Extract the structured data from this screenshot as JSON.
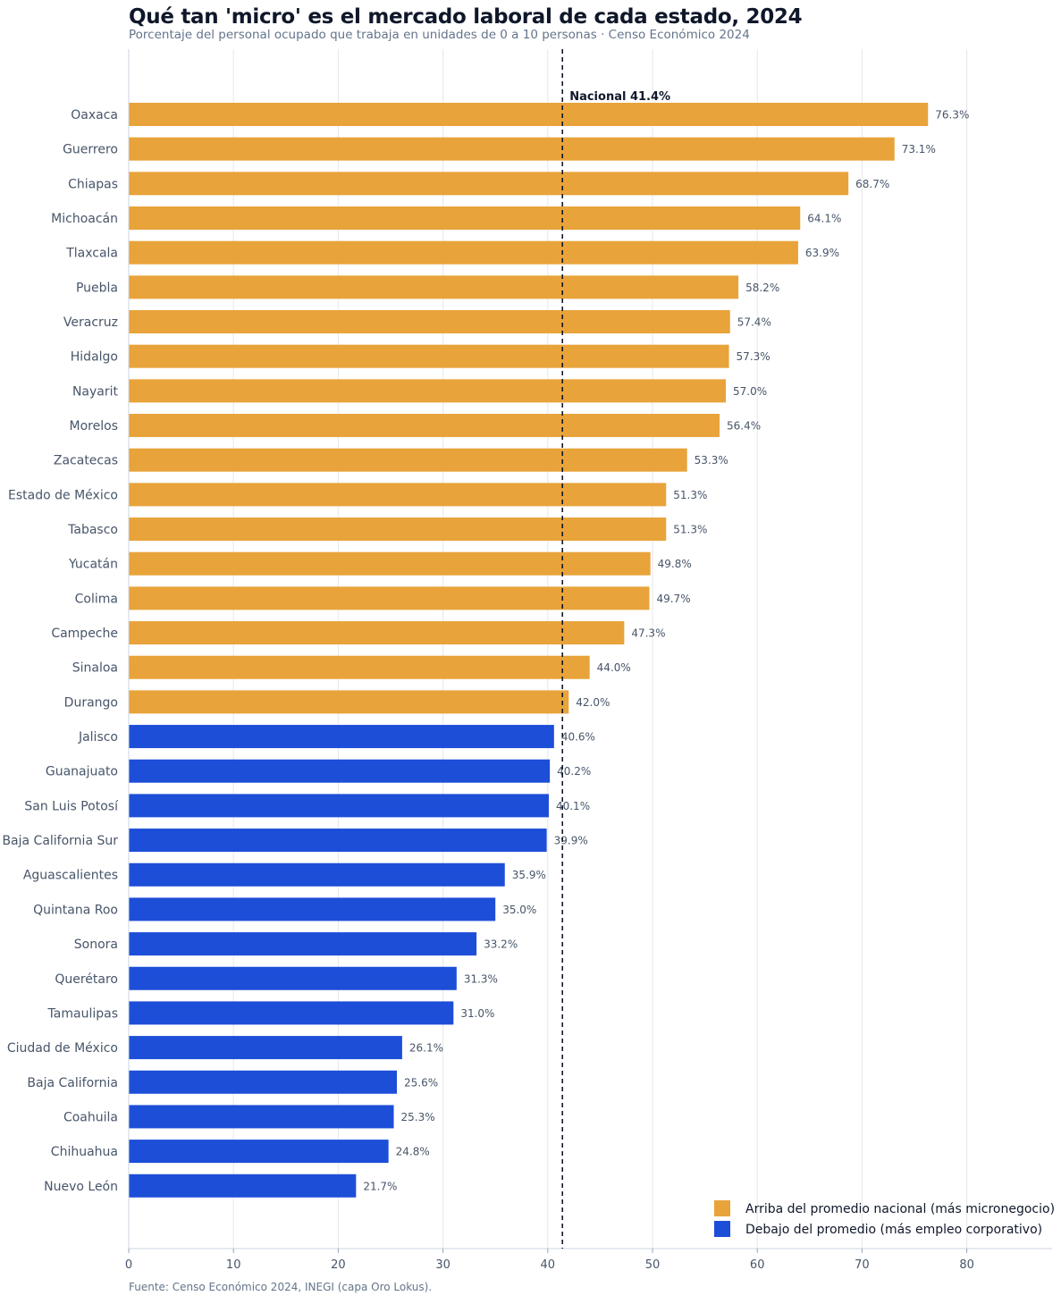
{
  "chart_data": {
    "type": "bar",
    "orientation": "horizontal",
    "title": "Qué tan 'micro' es el mercado laboral de cada estado, 2024",
    "subtitle": "Porcentaje del personal ocupado que trabaja en unidades de 0 a 10 personas · Censo Económico 2024",
    "source": "Fuente: Censo Económico 2024, INEGI (capa Oro Lokus).",
    "xlim": [
      0,
      88
    ],
    "x_ticks": [
      0,
      10,
      20,
      30,
      40,
      50,
      60,
      70,
      80
    ],
    "grid": "vertical",
    "legend_position": "bottom-right",
    "reference_line": {
      "value": 41.4,
      "label": "Nacional 41.4%"
    },
    "colors": {
      "above": "#E8A33A",
      "below": "#1D4ED8"
    },
    "legend": [
      {
        "group": "above",
        "label": "Arriba del promedio nacional (más micronegocio)"
      },
      {
        "group": "below",
        "label": "Debajo del promedio (más empleo corporativo)"
      }
    ],
    "categories": [
      "Oaxaca",
      "Guerrero",
      "Chiapas",
      "Michoacán",
      "Tlaxcala",
      "Puebla",
      "Veracruz",
      "Hidalgo",
      "Nayarit",
      "Morelos",
      "Zacatecas",
      "Estado de México",
      "Tabasco",
      "Yucatán",
      "Colima",
      "Campeche",
      "Sinaloa",
      "Durango",
      "Jalisco",
      "Guanajuato",
      "San Luis Potosí",
      "Baja California Sur",
      "Aguascalientes",
      "Quintana Roo",
      "Sonora",
      "Querétaro",
      "Tamaulipas",
      "Ciudad de México",
      "Baja California",
      "Coahuila",
      "Chihuahua",
      "Nuevo León"
    ],
    "values": [
      76.3,
      73.1,
      68.7,
      64.1,
      63.9,
      58.2,
      57.4,
      57.3,
      57.0,
      56.4,
      53.3,
      51.3,
      51.3,
      49.8,
      49.7,
      47.3,
      44.0,
      42.0,
      40.6,
      40.2,
      40.1,
      39.9,
      35.9,
      35.0,
      33.2,
      31.3,
      31.0,
      26.1,
      25.6,
      25.3,
      24.8,
      21.7
    ],
    "value_labels": [
      "76.3%",
      "73.1%",
      "68.7%",
      "64.1%",
      "63.9%",
      "58.2%",
      "57.4%",
      "57.3%",
      "57.0%",
      "56.4%",
      "53.3%",
      "51.3%",
      "51.3%",
      "49.8%",
      "49.7%",
      "47.3%",
      "44.0%",
      "42.0%",
      "40.6%",
      "40.2%",
      "40.1%",
      "39.9%",
      "35.9%",
      "35.0%",
      "33.2%",
      "31.3%",
      "31.0%",
      "26.1%",
      "25.6%",
      "25.3%",
      "24.8%",
      "21.7%"
    ]
  }
}
